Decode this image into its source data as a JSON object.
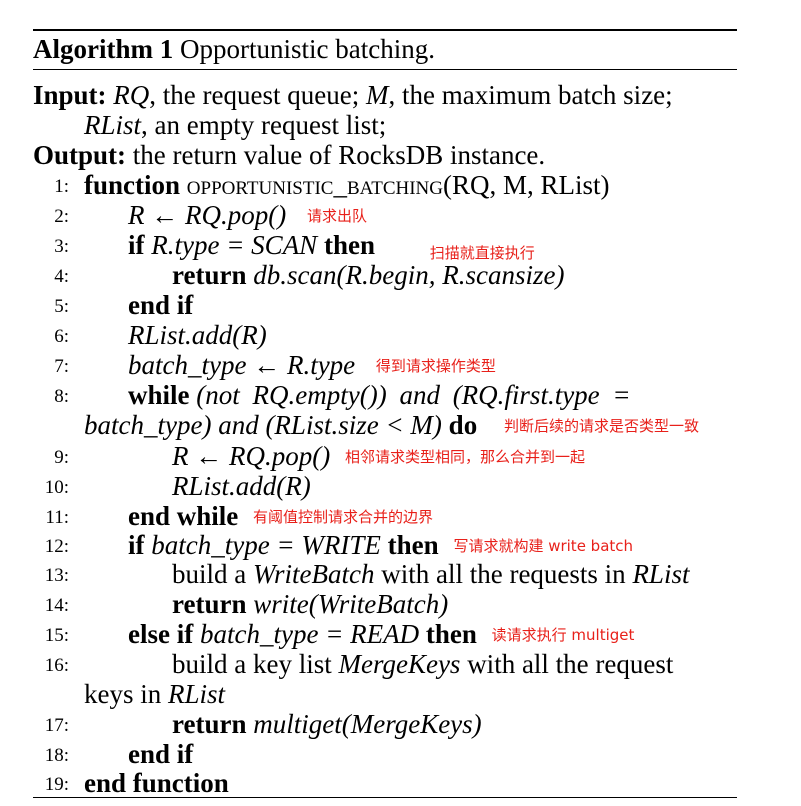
{
  "caption": {
    "label": "Algorithm 1",
    "title": "Opportunistic batching."
  },
  "input": {
    "label": "Input:",
    "rq": "RQ",
    "rq_desc": ", the request queue;",
    "m": "M",
    "m_desc": ", the maximum batch size;",
    "rlist": "RList",
    "rlist_desc": ", an empty request list;"
  },
  "output": {
    "label": "Output:",
    "desc": "the return value of RocksDB instance."
  },
  "lines": [
    {
      "no": "1:"
    },
    {
      "no": "2:",
      "note": "请求出队"
    },
    {
      "no": "3:",
      "note": "扫描就直接执行"
    },
    {
      "no": "4:"
    },
    {
      "no": "5:"
    },
    {
      "no": "6:"
    },
    {
      "no": "7:",
      "note": "得到请求操作类型"
    },
    {
      "no": "8:",
      "note": "判断后续的请求是否类型一致"
    },
    {
      "no": "9:",
      "note": "相邻请求类型相同，那么合并到一起"
    },
    {
      "no": "10:"
    },
    {
      "no": "11:",
      "note": "有阈值控制请求合并的边界"
    },
    {
      "no": "12:",
      "note": "写请求就构建 write batch"
    },
    {
      "no": "13:"
    },
    {
      "no": "14:"
    },
    {
      "no": "15:",
      "note": "读请求执行 multiget"
    },
    {
      "no": "16:"
    },
    {
      "no": "17:"
    },
    {
      "no": "18:"
    },
    {
      "no": "19:"
    }
  ],
  "code": {
    "l1_kw": "function",
    "l1_name": "opportunistic_batching",
    "l1_args": "(RQ, M, RList)",
    "l2": "R ← RQ.pop()",
    "l3_if": "if",
    "l3_cond": "R.type = SCAN",
    "l3_then": "then",
    "l4_ret": "return",
    "l4_expr": "db.scan(R.begin, R.scansize)",
    "l5": "end if",
    "l6": "RList.add(R)",
    "l7": "batch_type ← R.type",
    "l8_while": "while",
    "l8_a": "(not RQ.empty()) and (RQ.first.type =",
    "l8_b": "batch_type) and (RList.size < M)",
    "l8_do": "do",
    "l9": "R ← RQ.pop()",
    "l10": "RList.add(R)",
    "l11": "end while",
    "l12_if": "if",
    "l12_cond": "batch_type = WRITE",
    "l12_then": "then",
    "l13_a": "build a",
    "l13_b": "WriteBatch",
    "l13_c": "with all the requests in",
    "l13_d": "RList",
    "l14_ret": "return",
    "l14_expr": "write(WriteBatch)",
    "l15_elseif": "else if",
    "l15_cond": "batch_type = READ",
    "l15_then": "then",
    "l16_a": "build a key list",
    "l16_b": "MergeKeys",
    "l16_c": "with all the request",
    "l16_d": "keys in",
    "l16_e": "RList",
    "l17_ret": "return",
    "l17_expr": "multiget(MergeKeys)",
    "l18": "end if",
    "l19": "end function"
  }
}
